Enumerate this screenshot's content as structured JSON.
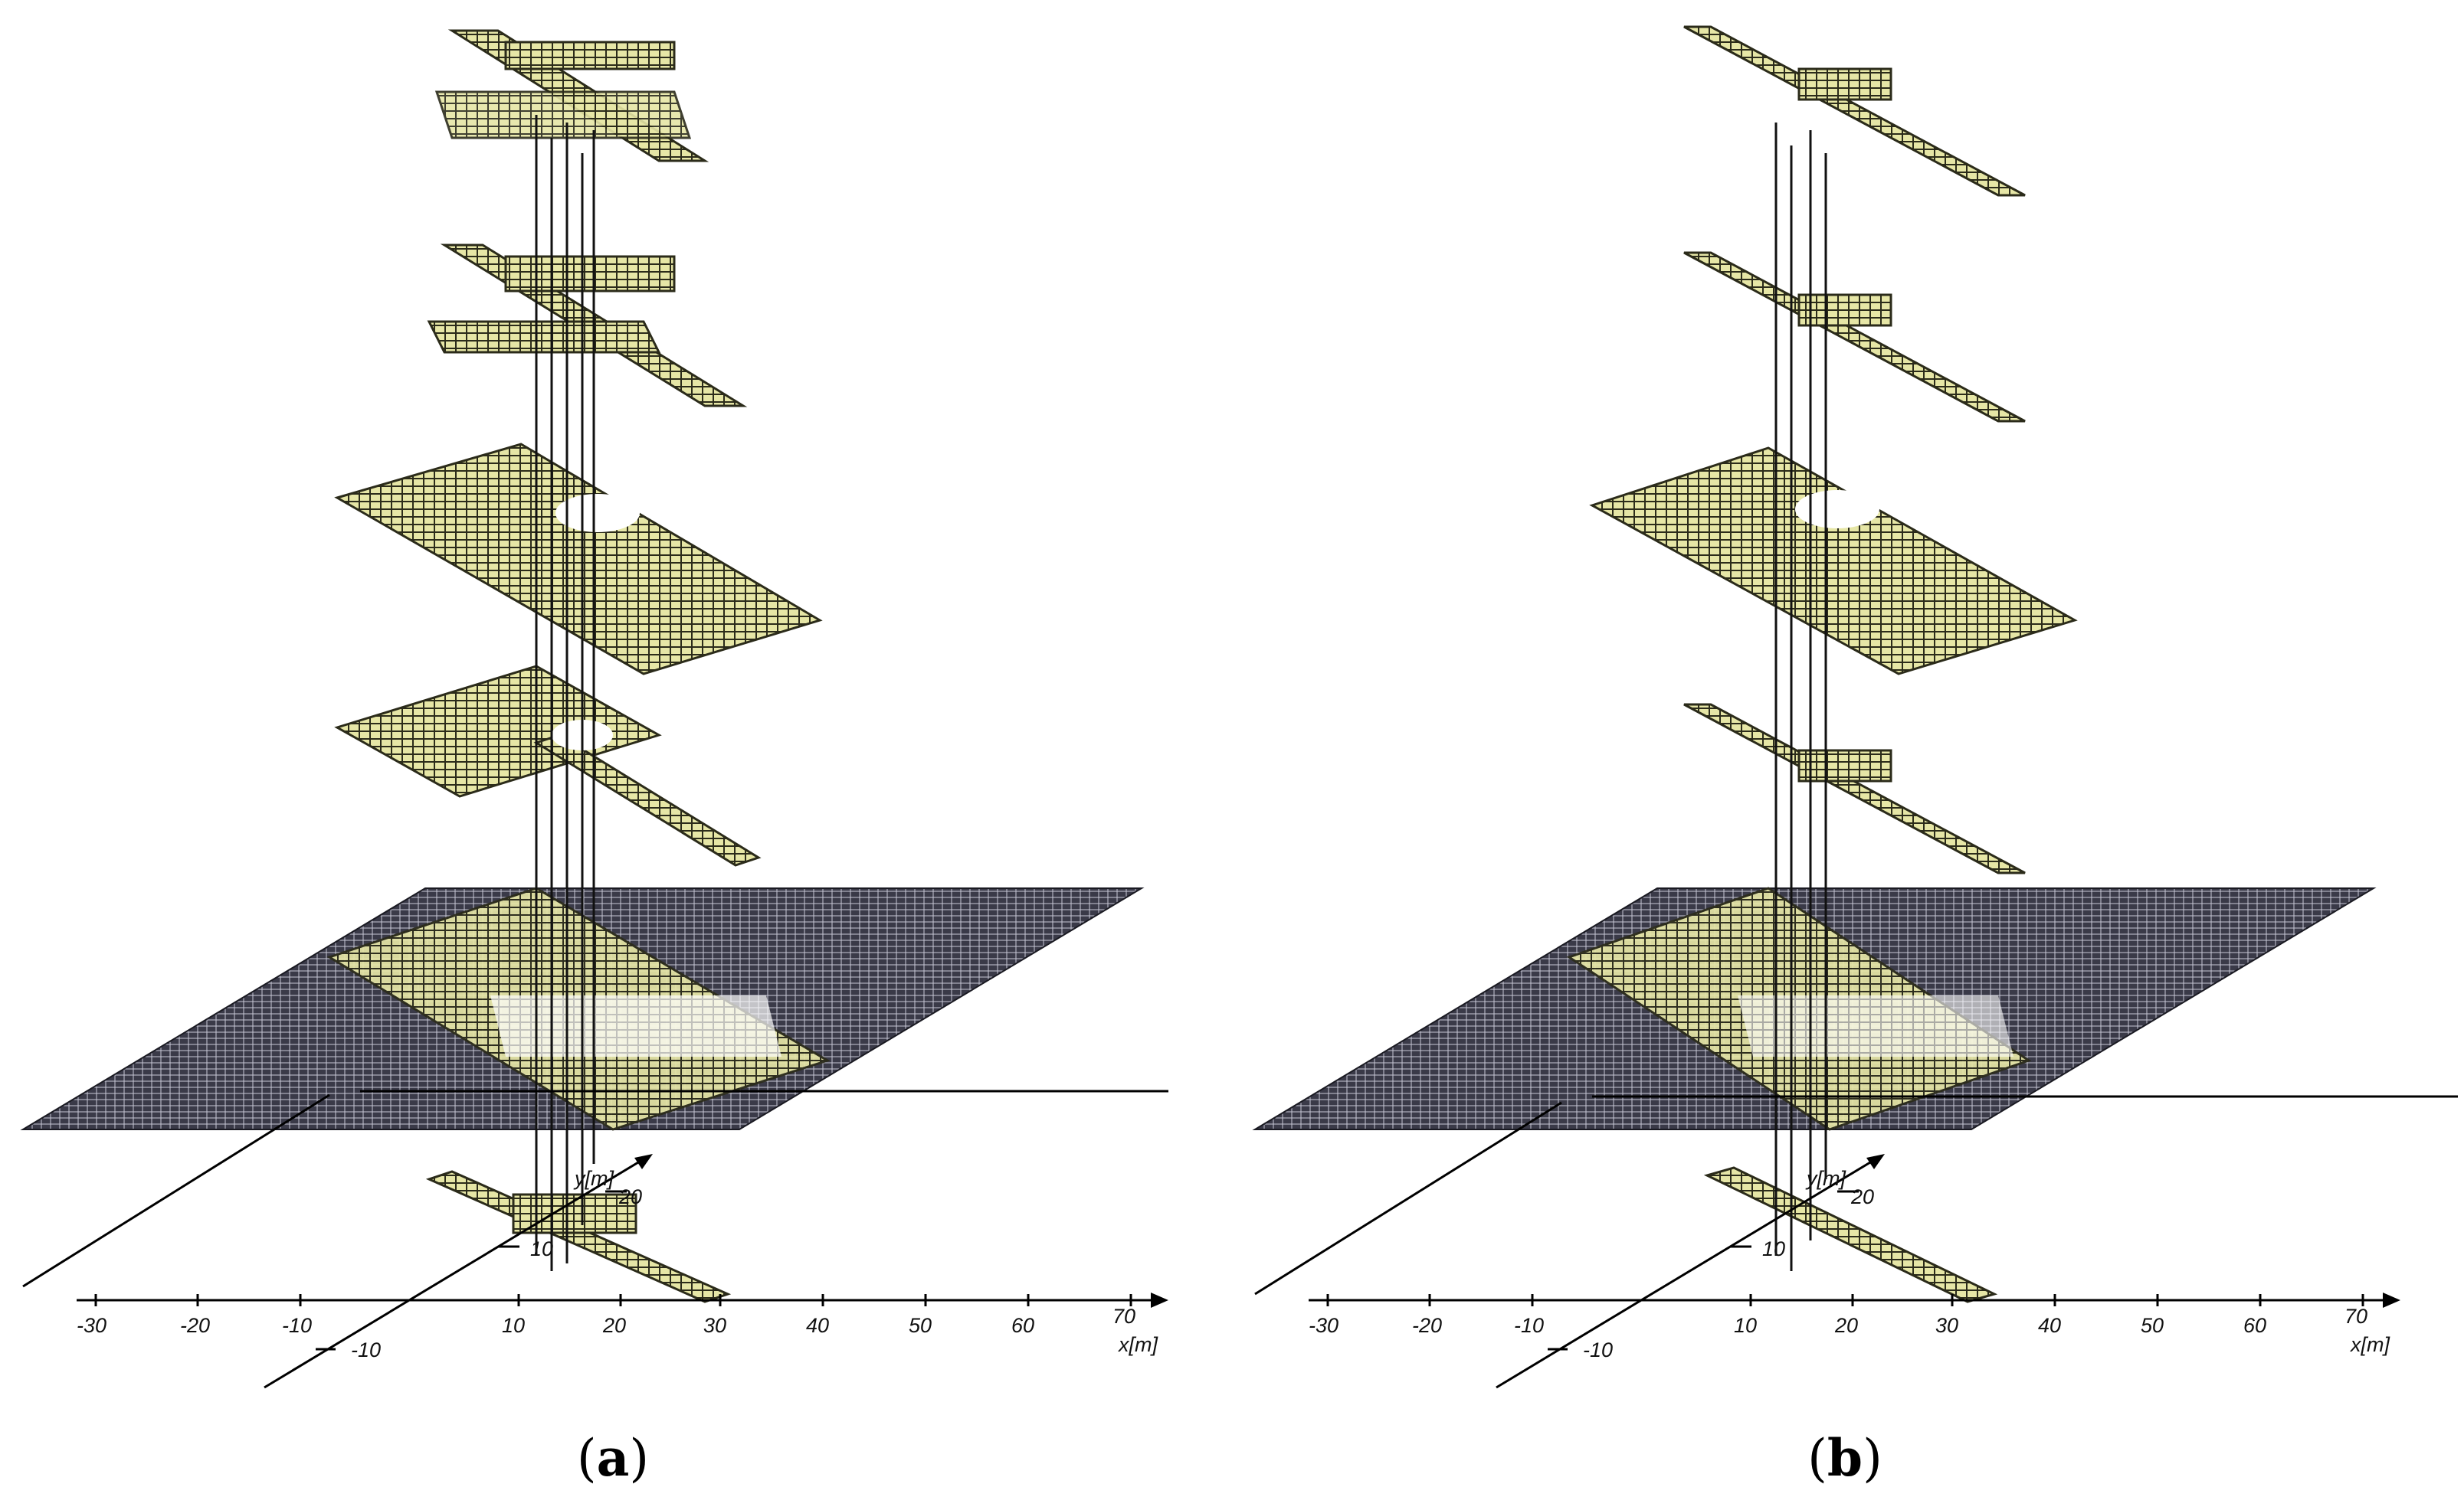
{
  "figure": {
    "panels": [
      {
        "id": "a",
        "caption_open": "(",
        "caption_letter": "a",
        "caption_close": ")",
        "x_axis": {
          "label": "x[m]",
          "ticks": [
            "-30",
            "-20",
            "-10",
            "10",
            "20",
            "30",
            "40",
            "50",
            "60",
            "70"
          ]
        },
        "y_axis": {
          "label": "y[m]",
          "ticks": [
            "-10",
            "10",
            "20"
          ]
        }
      },
      {
        "id": "b",
        "caption_open": "(",
        "caption_letter": "b",
        "caption_close": ")",
        "x_axis": {
          "label": "x[m]",
          "ticks": [
            "-30",
            "-20",
            "-10",
            "10",
            "20",
            "30",
            "40",
            "50",
            "60",
            "70"
          ]
        },
        "y_axis": {
          "label": "y[m]",
          "ticks": [
            "-10",
            "10",
            "20"
          ]
        }
      }
    ],
    "colors": {
      "mesh_fill": "#e6e6a6",
      "mesh_stroke": "#2b2b1a",
      "ground_fill": "#3a3a48",
      "ground_highlight": "#d9d9a0",
      "axis": "#000000",
      "vertical_links": "#111111"
    }
  }
}
